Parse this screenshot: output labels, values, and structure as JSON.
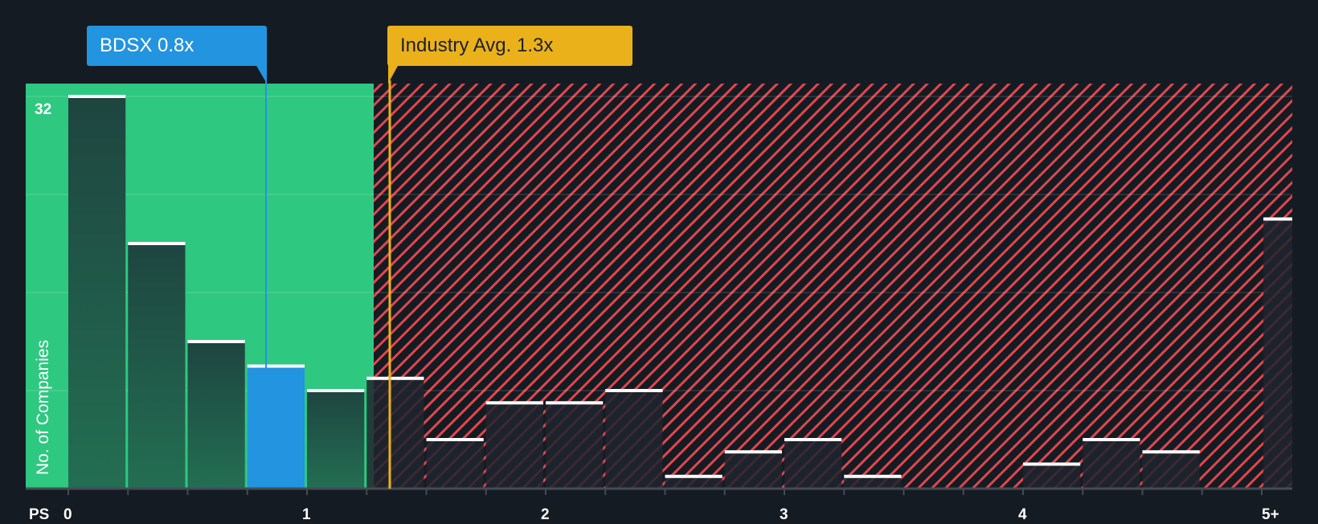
{
  "chart_data": {
    "type": "bar",
    "title": "",
    "xlabel": "PS",
    "ylabel": "No. of Companies",
    "x_tick_labels": [
      "0",
      "1",
      "2",
      "3",
      "4",
      "5+"
    ],
    "bin_width": 0.25,
    "categories": [
      "0-0.25",
      "0.25-0.5",
      "0.5-0.75",
      "0.75-1",
      "1-1.25",
      "1.25-1.5",
      "1.5-1.75",
      "1.75-2",
      "2-2.25",
      "2.25-2.5",
      "2.5-2.75",
      "2.75-3",
      "3-3.25",
      "3.25-3.5",
      "3.5-3.75",
      "3.75-4",
      "4-4.25",
      "4.25-4.5",
      "4.5-4.75",
      "5+"
    ],
    "values": [
      32,
      20,
      12,
      10,
      8,
      9,
      4,
      7,
      7,
      8,
      1,
      3,
      4,
      1,
      0,
      0,
      2,
      4,
      3,
      22
    ],
    "ylim": [
      0,
      32
    ],
    "y_tick_labels": [
      "32"
    ],
    "grid": true,
    "highlight": {
      "company": "BDSX",
      "value": 0.8,
      "bin_index": 3
    },
    "industry_avg": 1.3,
    "annotations": [
      "BDSX 0.8x",
      "Industry Avg. 1.3x"
    ],
    "colors": {
      "background": "#151b23",
      "good_zone": "#2ec880",
      "bad_zone_stripe": "#e0474c",
      "company": "#2394df",
      "industry": "#ebb11b",
      "bar_dark": "#1f4a3f"
    }
  },
  "labels": {
    "company": "BDSX 0.8x",
    "industry": "Industry Avg. 1.3x",
    "y_max": "32",
    "x_axis_title": "PS",
    "y_axis_title": "No. of Companies"
  }
}
